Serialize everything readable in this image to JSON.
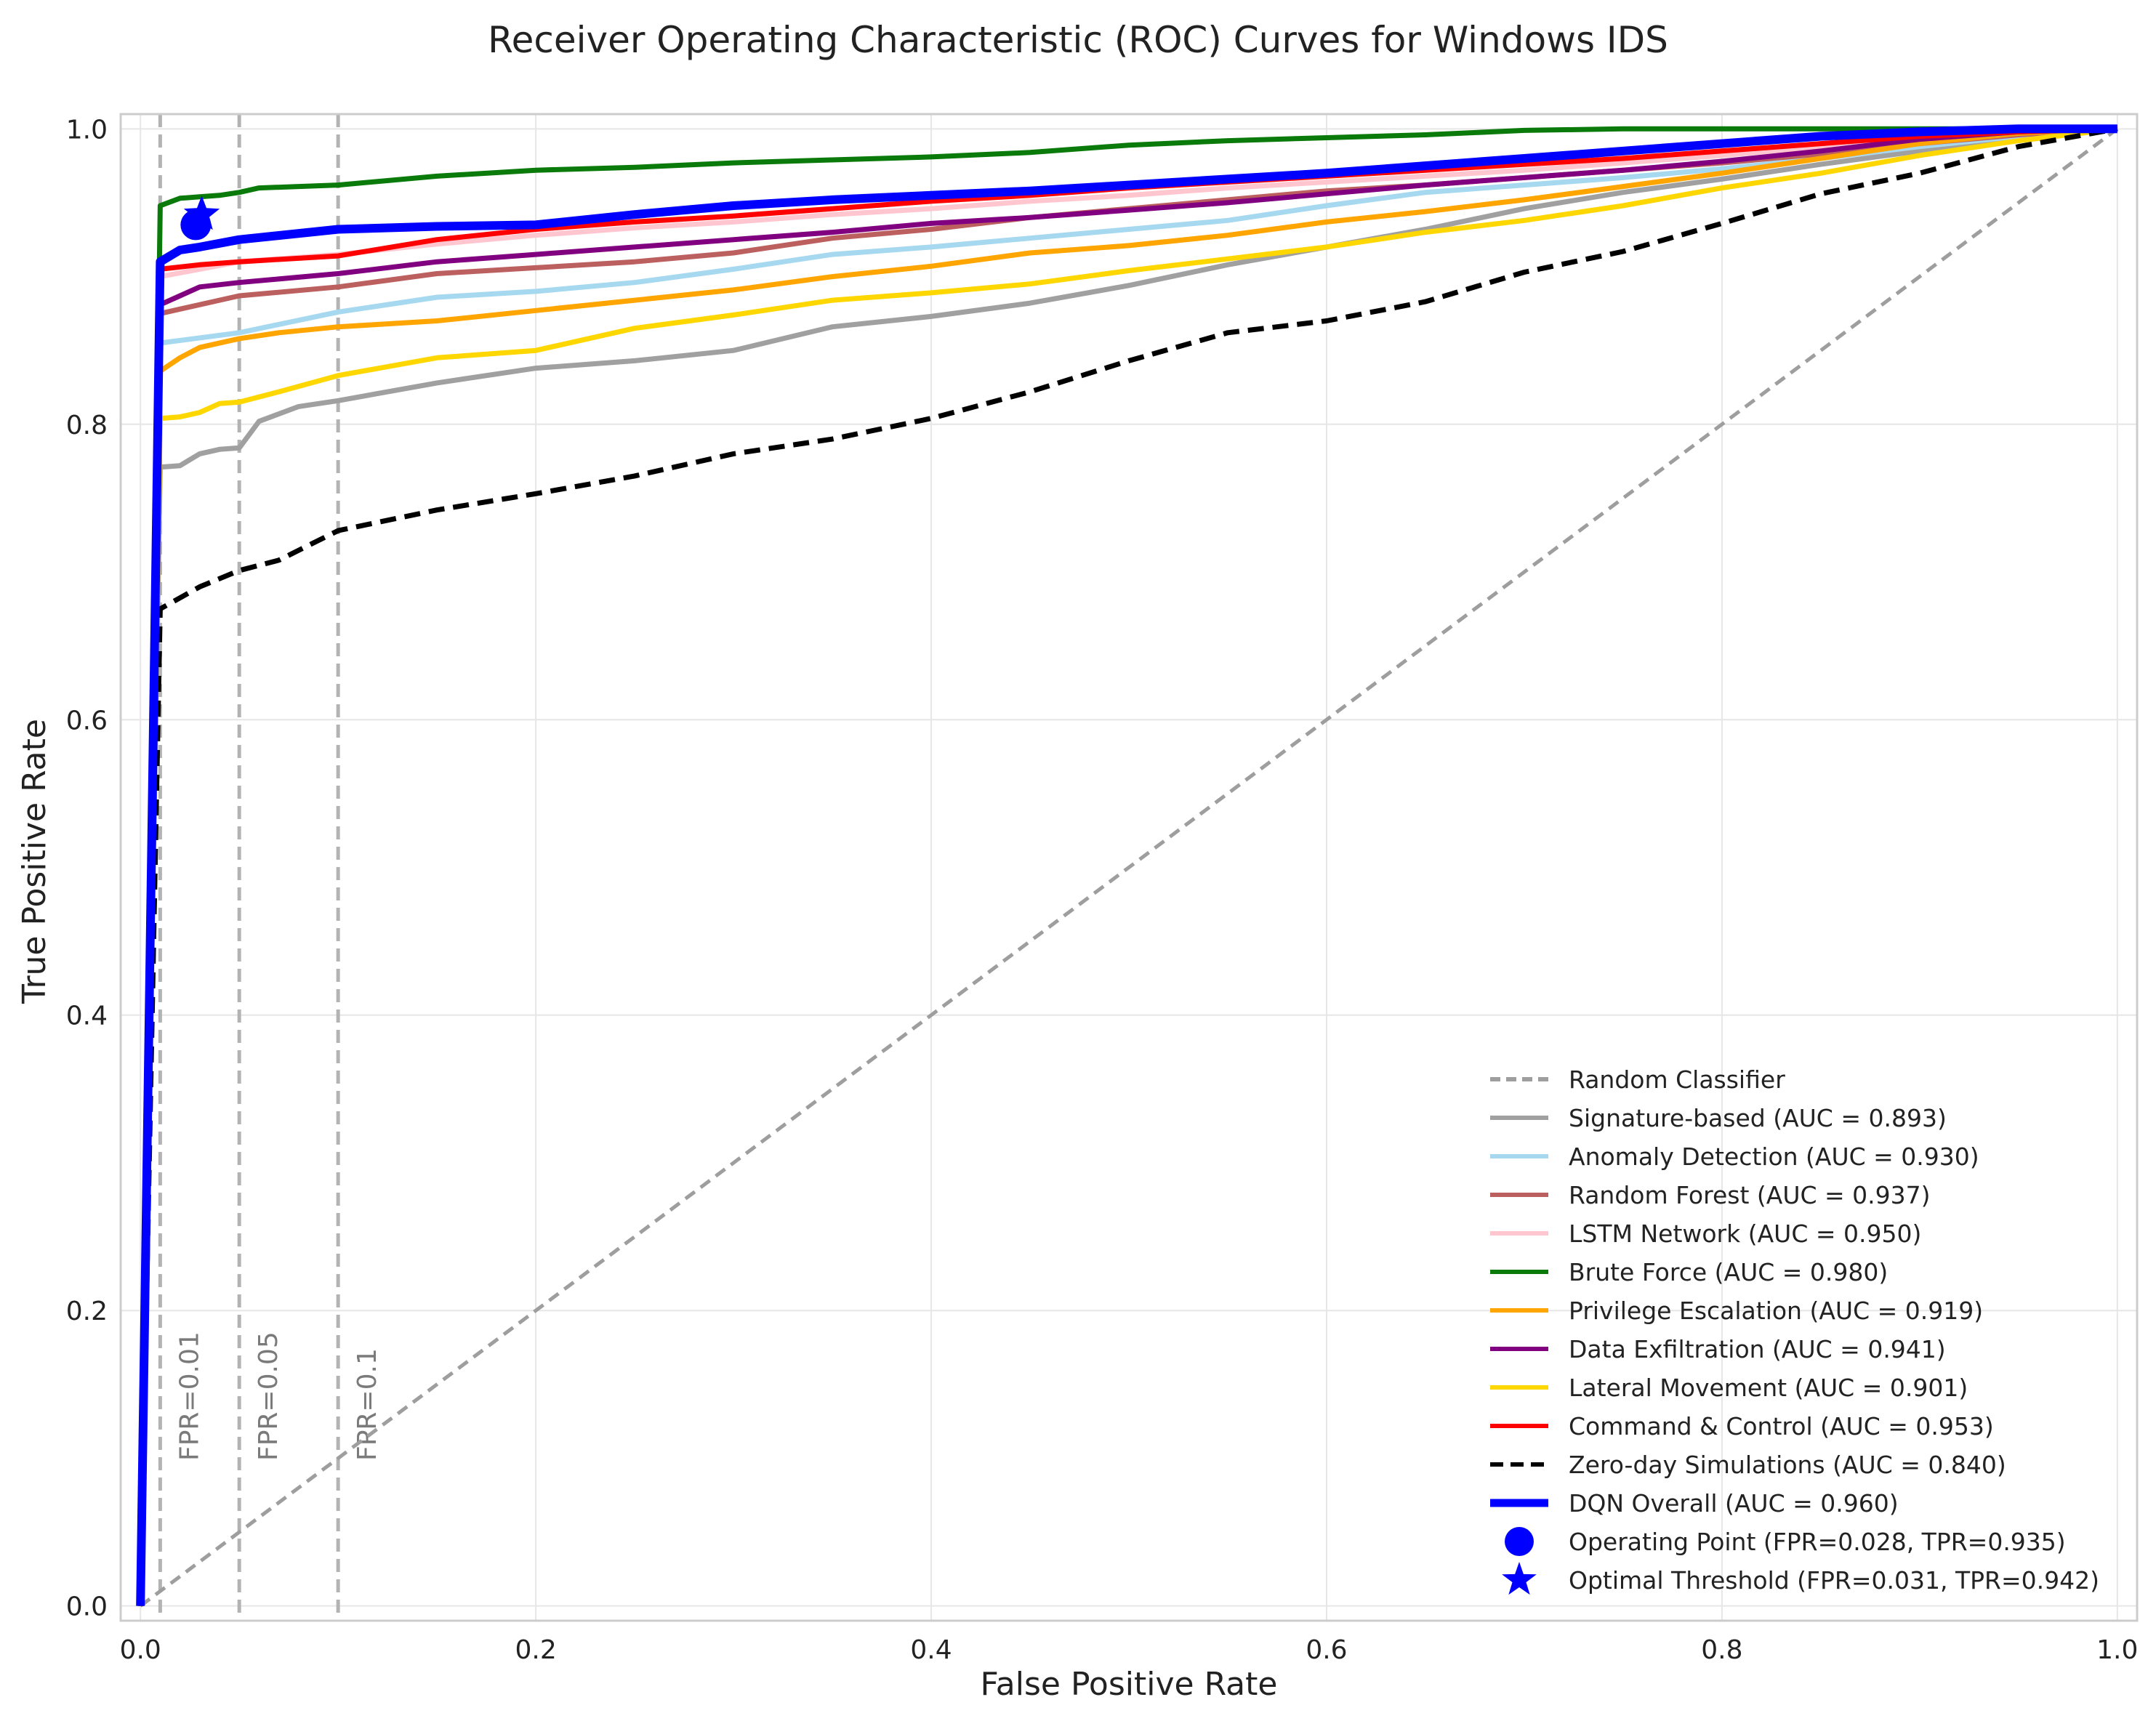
{
  "chart_data": {
    "type": "line",
    "title": "Receiver Operating Characteristic (ROC) Curves for Windows IDS",
    "xlabel": "False Positive Rate",
    "ylabel": "True Positive Rate",
    "xlim": [
      -0.01,
      1.01
    ],
    "ylim": [
      -0.01,
      1.01
    ],
    "xticks": [
      0.0,
      0.2,
      0.4,
      0.6,
      0.8,
      1.0
    ],
    "yticks": [
      0.0,
      0.2,
      0.4,
      0.6,
      0.8,
      1.0
    ],
    "xtick_labels": [
      "0.0",
      "0.2",
      "0.4",
      "0.6",
      "0.8",
      "1.0"
    ],
    "ytick_labels": [
      "0.0",
      "0.2",
      "0.4",
      "0.6",
      "0.8",
      "1.0"
    ],
    "grid": true,
    "legend_position": "lower-right",
    "fpr_markers": [
      {
        "x": 0.01,
        "label": "FPR=0.01"
      },
      {
        "x": 0.05,
        "label": "FPR=0.05"
      },
      {
        "x": 0.1,
        "label": "FPR=0.1"
      }
    ],
    "series": [
      {
        "name": "Random Classifier",
        "color": "#9e9e9e",
        "style": "dashed",
        "width": "normal",
        "x": [
          0,
          1
        ],
        "y": [
          0,
          1
        ]
      },
      {
        "name": "Signature-based (AUC = 0.893)",
        "color": "#a0a0a0",
        "style": "solid",
        "width": "normal",
        "x": [
          0,
          0.01,
          0.02,
          0.03,
          0.04,
          0.05,
          0.06,
          0.08,
          0.1,
          0.15,
          0.2,
          0.25,
          0.3,
          0.35,
          0.4,
          0.45,
          0.5,
          0.55,
          0.6,
          0.65,
          0.7,
          0.75,
          0.8,
          0.85,
          0.9,
          0.95,
          1.0
        ],
        "y": [
          0,
          0.771,
          0.772,
          0.78,
          0.783,
          0.784,
          0.802,
          0.812,
          0.816,
          0.828,
          0.838,
          0.843,
          0.85,
          0.866,
          0.873,
          0.882,
          0.894,
          0.908,
          0.92,
          0.932,
          0.946,
          0.957,
          0.966,
          0.976,
          0.985,
          0.995,
          1.0
        ]
      },
      {
        "name": "Anomaly Detection (AUC = 0.930)",
        "color": "#a6d8f0",
        "style": "solid",
        "width": "normal",
        "x": [
          0,
          0.01,
          0.05,
          0.1,
          0.15,
          0.2,
          0.25,
          0.3,
          0.35,
          0.4,
          0.45,
          0.5,
          0.55,
          0.6,
          0.65,
          0.7,
          0.75,
          0.8,
          0.85,
          0.9,
          0.95,
          1.0
        ],
        "y": [
          0,
          0.855,
          0.862,
          0.876,
          0.886,
          0.89,
          0.896,
          0.905,
          0.915,
          0.92,
          0.926,
          0.932,
          0.938,
          0.948,
          0.957,
          0.962,
          0.967,
          0.973,
          0.98,
          0.988,
          0.995,
          1.0
        ]
      },
      {
        "name": "Random Forest (AUC = 0.937)",
        "color": "#bc5f5f",
        "style": "solid",
        "width": "normal",
        "x": [
          0,
          0.01,
          0.05,
          0.1,
          0.15,
          0.2,
          0.25,
          0.3,
          0.35,
          0.4,
          0.45,
          0.5,
          0.55,
          0.6,
          0.65,
          0.7,
          0.75,
          0.8,
          0.85,
          0.9,
          0.95,
          1.0
        ],
        "y": [
          0,
          0.875,
          0.887,
          0.893,
          0.902,
          0.906,
          0.91,
          0.916,
          0.926,
          0.932,
          0.94,
          0.946,
          0.952,
          0.958,
          0.962,
          0.967,
          0.972,
          0.977,
          0.983,
          0.99,
          0.996,
          1.0
        ]
      },
      {
        "name": "LSTM Network (AUC = 0.950)",
        "color": "#ffc6d0",
        "style": "solid",
        "width": "normal",
        "x": [
          0,
          0.01,
          0.05,
          0.1,
          0.15,
          0.2,
          0.25,
          0.3,
          0.35,
          0.4,
          0.45,
          0.5,
          0.55,
          0.6,
          0.65,
          0.7,
          0.75,
          0.8,
          0.85,
          0.9,
          0.95,
          1.0
        ],
        "y": [
          0,
          0.9,
          0.91,
          0.915,
          0.922,
          0.928,
          0.933,
          0.937,
          0.942,
          0.946,
          0.951,
          0.955,
          0.96,
          0.964,
          0.968,
          0.972,
          0.977,
          0.982,
          0.988,
          0.993,
          0.998,
          1.0
        ]
      },
      {
        "name": "Brute Force (AUC = 0.980)",
        "color": "#0a7a0a",
        "style": "solid",
        "width": "normal",
        "x": [
          0,
          0.01,
          0.02,
          0.03,
          0.04,
          0.05,
          0.06,
          0.08,
          0.1,
          0.15,
          0.2,
          0.25,
          0.3,
          0.35,
          0.4,
          0.45,
          0.5,
          0.55,
          0.6,
          0.65,
          0.7,
          0.75,
          0.8,
          0.85,
          0.9,
          0.95,
          1.0
        ],
        "y": [
          0,
          0.948,
          0.953,
          0.954,
          0.955,
          0.957,
          0.96,
          0.961,
          0.962,
          0.968,
          0.972,
          0.974,
          0.977,
          0.979,
          0.981,
          0.984,
          0.989,
          0.992,
          0.994,
          0.996,
          0.999,
          1.0,
          1.0,
          1.0,
          1.0,
          1.0,
          1.0
        ]
      },
      {
        "name": "Privilege Escalation (AUC = 0.919)",
        "color": "#ffa500",
        "style": "solid",
        "width": "normal",
        "x": [
          0,
          0.01,
          0.02,
          0.03,
          0.05,
          0.07,
          0.1,
          0.15,
          0.2,
          0.25,
          0.3,
          0.35,
          0.4,
          0.45,
          0.5,
          0.55,
          0.6,
          0.65,
          0.7,
          0.75,
          0.8,
          0.85,
          0.9,
          0.95,
          1.0
        ],
        "y": [
          0,
          0.836,
          0.845,
          0.852,
          0.858,
          0.862,
          0.866,
          0.87,
          0.877,
          0.884,
          0.891,
          0.9,
          0.907,
          0.916,
          0.921,
          0.928,
          0.937,
          0.944,
          0.952,
          0.961,
          0.97,
          0.98,
          0.99,
          0.997,
          1.0
        ]
      },
      {
        "name": "Data Exfiltration (AUC = 0.941)",
        "color": "#800080",
        "style": "solid",
        "width": "normal",
        "x": [
          0,
          0.01,
          0.02,
          0.03,
          0.05,
          0.1,
          0.15,
          0.2,
          0.25,
          0.3,
          0.35,
          0.4,
          0.45,
          0.5,
          0.55,
          0.6,
          0.65,
          0.7,
          0.75,
          0.8,
          0.85,
          0.9,
          0.95,
          1.0
        ],
        "y": [
          0,
          0.881,
          0.887,
          0.893,
          0.896,
          0.902,
          0.91,
          0.915,
          0.92,
          0.925,
          0.93,
          0.936,
          0.94,
          0.945,
          0.95,
          0.956,
          0.962,
          0.967,
          0.972,
          0.978,
          0.985,
          0.993,
          0.998,
          1.0
        ]
      },
      {
        "name": "Lateral Movement (AUC = 0.901)",
        "color": "#ffd700",
        "style": "solid",
        "width": "normal",
        "x": [
          0,
          0.01,
          0.02,
          0.03,
          0.04,
          0.05,
          0.07,
          0.1,
          0.15,
          0.2,
          0.25,
          0.3,
          0.35,
          0.4,
          0.45,
          0.5,
          0.55,
          0.6,
          0.65,
          0.7,
          0.75,
          0.8,
          0.85,
          0.9,
          0.95,
          1.0
        ],
        "y": [
          0,
          0.804,
          0.805,
          0.808,
          0.814,
          0.815,
          0.822,
          0.833,
          0.845,
          0.85,
          0.865,
          0.874,
          0.884,
          0.889,
          0.895,
          0.904,
          0.912,
          0.92,
          0.93,
          0.938,
          0.948,
          0.96,
          0.97,
          0.982,
          0.992,
          1.0
        ]
      },
      {
        "name": "Command & Control (AUC = 0.953)",
        "color": "#ff0000",
        "style": "solid",
        "width": "normal",
        "x": [
          0,
          0.01,
          0.03,
          0.05,
          0.1,
          0.15,
          0.2,
          0.25,
          0.3,
          0.35,
          0.4,
          0.45,
          0.5,
          0.55,
          0.6,
          0.65,
          0.7,
          0.75,
          0.8,
          0.85,
          0.9,
          0.95,
          1.0
        ],
        "y": [
          0,
          0.905,
          0.908,
          0.91,
          0.914,
          0.925,
          0.932,
          0.937,
          0.941,
          0.946,
          0.951,
          0.955,
          0.96,
          0.964,
          0.968,
          0.972,
          0.976,
          0.98,
          0.985,
          0.99,
          0.995,
          0.998,
          1.0
        ]
      },
      {
        "name": "Zero-day Simulations (AUC = 0.840)",
        "color": "#000000",
        "style": "dashed",
        "width": "normal",
        "x": [
          0,
          0.01,
          0.03,
          0.05,
          0.07,
          0.1,
          0.15,
          0.2,
          0.25,
          0.3,
          0.35,
          0.4,
          0.45,
          0.5,
          0.55,
          0.6,
          0.65,
          0.7,
          0.75,
          0.8,
          0.85,
          0.9,
          0.95,
          1.0
        ],
        "y": [
          0,
          0.675,
          0.69,
          0.701,
          0.708,
          0.728,
          0.742,
          0.753,
          0.765,
          0.78,
          0.79,
          0.804,
          0.822,
          0.843,
          0.862,
          0.87,
          0.883,
          0.903,
          0.917,
          0.936,
          0.956,
          0.97,
          0.988,
          1.0
        ]
      },
      {
        "name": "DQN Overall (AUC = 0.960)",
        "color": "#0000ff",
        "style": "solid",
        "width": "thick",
        "x": [
          0,
          0.01,
          0.02,
          0.03,
          0.05,
          0.1,
          0.15,
          0.2,
          0.25,
          0.3,
          0.35,
          0.4,
          0.45,
          0.5,
          0.55,
          0.6,
          0.65,
          0.7,
          0.75,
          0.8,
          0.85,
          0.9,
          0.95,
          1.0
        ],
        "y": [
          0,
          0.91,
          0.918,
          0.92,
          0.925,
          0.932,
          0.934,
          0.935,
          0.942,
          0.948,
          0.952,
          0.955,
          0.958,
          0.962,
          0.966,
          0.97,
          0.975,
          0.98,
          0.985,
          0.99,
          0.995,
          0.998,
          1.0,
          1.0
        ]
      }
    ],
    "points": [
      {
        "name": "Operating Point (FPR=0.028, TPR=0.935)",
        "marker": "circle",
        "color": "#0000ff",
        "x": 0.028,
        "y": 0.935
      },
      {
        "name": "Optimal Threshold (FPR=0.031, TPR=0.942)",
        "marker": "star",
        "color": "#0000ff",
        "x": 0.031,
        "y": 0.942
      }
    ]
  }
}
